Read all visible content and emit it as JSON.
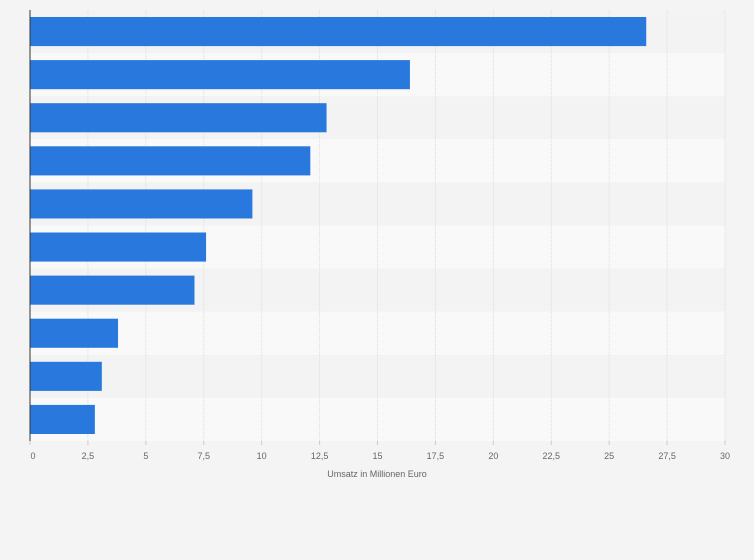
{
  "chart_data": {
    "type": "bar",
    "orientation": "horizontal",
    "categories": [
      "",
      "",
      "",
      "",
      "",
      "",
      "",
      "",
      "",
      ""
    ],
    "values": [
      26.6,
      16.4,
      12.8,
      12.1,
      9.6,
      7.6,
      7.1,
      3.8,
      3.1,
      2.8
    ],
    "title": "",
    "xlabel": "Umsatz in Millionen Euro",
    "ylabel": "",
    "xlim": [
      0,
      30
    ],
    "xticks": [
      "0",
      "2,5",
      "5",
      "7,5",
      "10",
      "12,5",
      "15",
      "17,5",
      "20",
      "22,5",
      "25",
      "27,5",
      "30"
    ],
    "grid": true,
    "legend": "none",
    "colors": {
      "bar": "#2878de",
      "band_light": "#f9f9f9",
      "band_dark": "#f3f3f3",
      "grid": "#dddddd",
      "axis": "#333333",
      "text": "#666666"
    }
  }
}
